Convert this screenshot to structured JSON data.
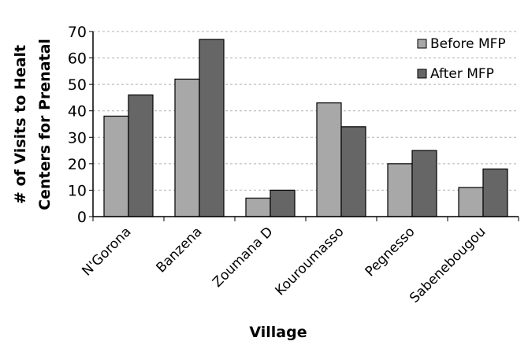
{
  "chart_data": {
    "type": "bar",
    "title": "",
    "xlabel": "Village",
    "ylabel_lines": [
      "# of Visits to Healt",
      "Centers for Prenatal"
    ],
    "ylim": [
      0,
      70
    ],
    "yticks": [
      0,
      10,
      20,
      30,
      40,
      50,
      60,
      70
    ],
    "grid": "horizontal dashed",
    "legend_position": "top-right",
    "categories": [
      "N'Gorona",
      "Banzena",
      "Zoumana D",
      "Kouroumasso",
      "Pegnesso",
      "Sabenebougou"
    ],
    "series": [
      {
        "name": "Before MFP",
        "color": "#a8a8a8",
        "values": [
          38,
          52,
          7,
          43,
          20,
          11
        ]
      },
      {
        "name": "After MFP",
        "color": "#666666",
        "values": [
          46,
          67,
          10,
          34,
          25,
          18
        ]
      }
    ]
  }
}
